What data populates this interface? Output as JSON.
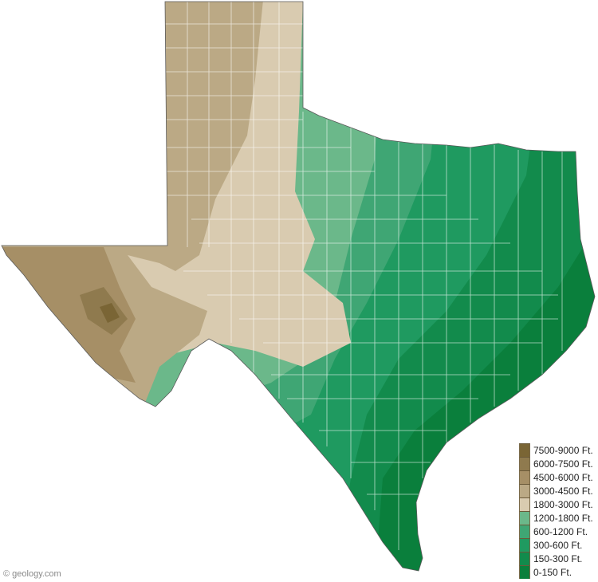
{
  "legend": {
    "items": [
      {
        "label": "7500-9000 Ft.",
        "color": "#7a6535"
      },
      {
        "label": "6000-7500 Ft.",
        "color": "#8f7a4e"
      },
      {
        "label": "4500-6000 Ft.",
        "color": "#a68f66"
      },
      {
        "label": "3000-4500 Ft.",
        "color": "#bba985"
      },
      {
        "label": "1800-3000 Ft.",
        "color": "#d9cbb0"
      },
      {
        "label": "1200-1800 Ft.",
        "color": "#6bb88a"
      },
      {
        "label": "600-1200 Ft.",
        "color": "#3fa674"
      },
      {
        "label": "300-600 Ft.",
        "color": "#1f9a60"
      },
      {
        "label": "150-300 Ft.",
        "color": "#128b4c"
      },
      {
        "label": "0-150 Ft.",
        "color": "#0a7f3c"
      }
    ]
  },
  "credit": "© geology.com"
}
